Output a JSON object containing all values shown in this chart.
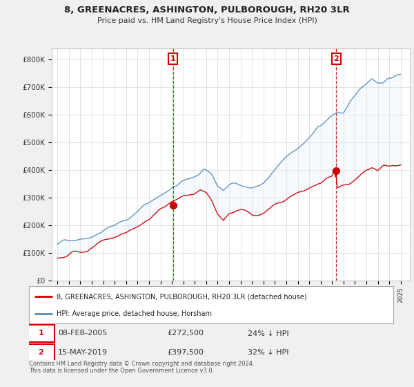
{
  "title": "8, GREENACRES, ASHINGTON, PULBOROUGH, RH20 3LR",
  "subtitle": "Price paid vs. HM Land Registry's House Price Index (HPI)",
  "background_color": "#f0f0f0",
  "plot_bg_color": "#ffffff",
  "ylim": [
    0,
    840000
  ],
  "yticks": [
    0,
    100000,
    200000,
    300000,
    400000,
    500000,
    600000,
    700000,
    800000
  ],
  "ytick_labels": [
    "£0",
    "£100K",
    "£200K",
    "£300K",
    "£400K",
    "£500K",
    "£600K",
    "£700K",
    "£800K"
  ],
  "sale1_date": "08-FEB-2005",
  "sale1_price": 272500,
  "sale1_x": 2005.1,
  "sale2_date": "15-MAY-2019",
  "sale2_price": 397500,
  "sale2_x": 2019.37,
  "legend_line1": "8, GREENACRES, ASHINGTON, PULBOROUGH, RH20 3LR (detached house)",
  "legend_line2": "HPI: Average price, detached house, Horsham",
  "footnote1": "Contains HM Land Registry data © Crown copyright and database right 2024.",
  "footnote2": "This data is licensed under the Open Government Licence v3.0.",
  "sale_marker_color": "#cc0000",
  "hpi_line_color": "#5588bb",
  "hpi_fill_color": "#ddeeff",
  "property_line_color": "#cc0000",
  "vline_color": "#cc0000",
  "grid_color": "#cccccc",
  "xlim_left": 1994.5,
  "xlim_right": 2025.8
}
